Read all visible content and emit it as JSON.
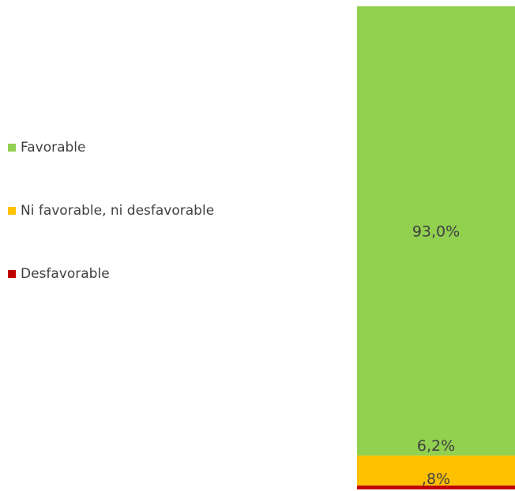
{
  "chart_data": {
    "type": "bar",
    "stacked": true,
    "orientation": "vertical",
    "categories": [
      ""
    ],
    "series": [
      {
        "name": "Favorable",
        "values": [
          93.0
        ],
        "label": "93,0%",
        "color": "#92D050"
      },
      {
        "name": "Ni favorable, ni desfavorable",
        "values": [
          6.2
        ],
        "label": "6,2%",
        "color": "#FFC000"
      },
      {
        "name": "Desfavorable",
        "values": [
          0.8
        ],
        "label": ",8%",
        "color": "#C00000"
      }
    ],
    "ylim": [
      0,
      100
    ],
    "grid": false,
    "legend_position": "left",
    "title": "",
    "xlabel": "",
    "ylabel": ""
  }
}
